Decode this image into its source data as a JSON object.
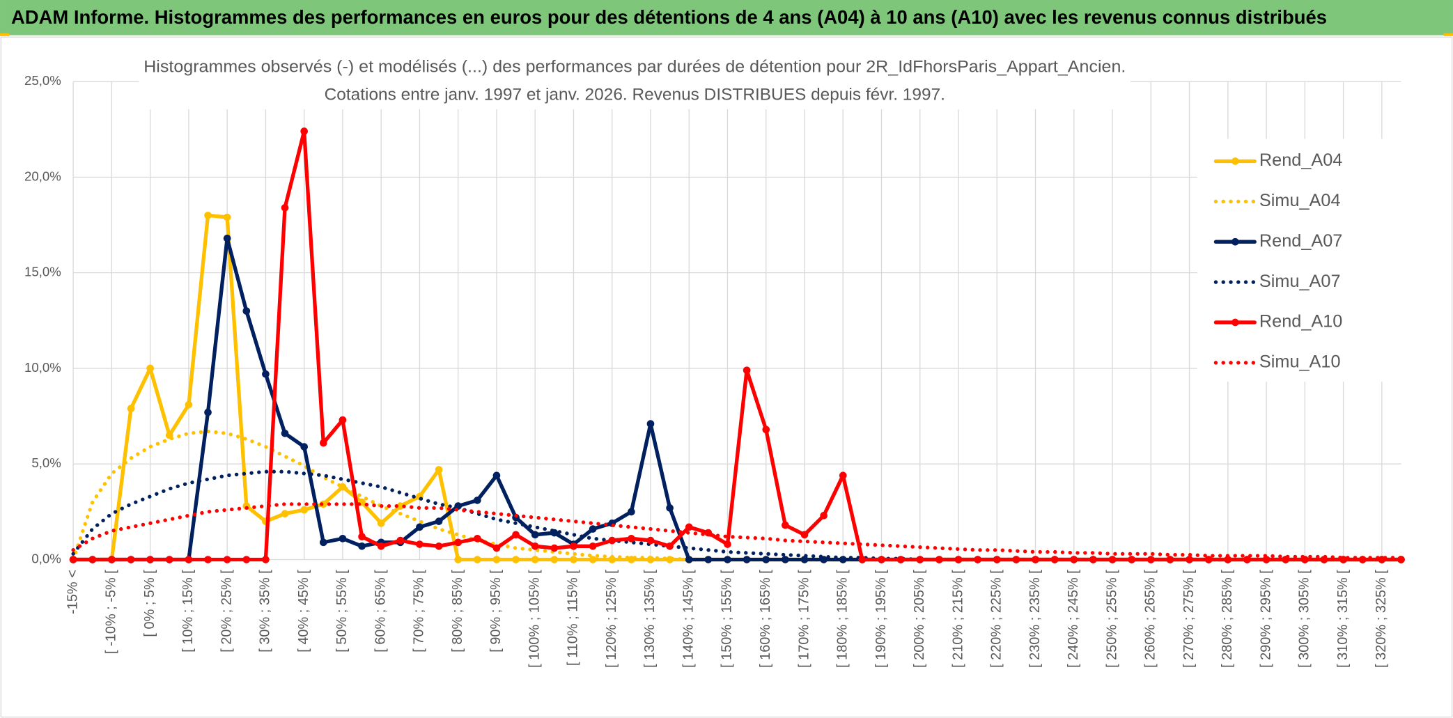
{
  "chart_data": {
    "type": "line",
    "header": "ADAM Informe. Histogrammes des performances en euros pour des détentions de 4 ans (A04) à 10 ans (A10) avec les revenus connus distribués",
    "title": "Histogrammes observés (-) et modélisés (...) des performances par durées de détention pour 2R_IdFhorsParis_Appart_Ancien.",
    "subtitle": "Cotations entre janv. 1997 et janv. 2026. Revenus DISTRIBUES depuis févr. 1997.",
    "categories": [
      "-15% <",
      null,
      "[ -10% ; -5% [",
      null,
      "[ 0% ; 5% [",
      null,
      "[ 10% ; 15% [",
      null,
      "[ 20% ; 25% [",
      null,
      "[ 30% ; 35% [",
      null,
      "[ 40% ; 45% [",
      null,
      "[ 50% ; 55% [",
      null,
      "[ 60% ; 65% [",
      null,
      "[ 70% ; 75% [",
      null,
      "[ 80% ; 85% [",
      null,
      "[ 90% ; 95% [",
      null,
      "[ 100% ; 105% [",
      null,
      "[ 110% ; 115% [",
      null,
      "[ 120% ; 125% [",
      null,
      "[ 130% ; 135% [",
      null,
      "[ 140% ; 145% [",
      null,
      "[ 150% ; 155% [",
      null,
      "[ 160% ; 165% [",
      null,
      "[ 170% ; 175% [",
      null,
      "[ 180% ; 185% [",
      null,
      "[ 190% ; 195% [",
      null,
      "[ 200% ; 205% [",
      null,
      "[ 210% ; 215% [",
      null,
      "[ 220% ; 225% [",
      null,
      "[ 230% ; 235% [",
      null,
      "[ 240% ; 245% [",
      null,
      "[ 250% ; 255% [",
      null,
      "[ 260% ; 265% [",
      null,
      "[ 270% ; 275% [",
      null,
      "[ 280% ; 285% [",
      null,
      "[ 290% ; 295% [",
      null,
      "[ 300% ; 305% [",
      null,
      "[ 310% ; 315% [",
      null,
      "[ 320% ; 325% [",
      null
    ],
    "ylim": [
      0,
      25
    ],
    "yticks": [
      {
        "value": 0,
        "label": "0,0%"
      },
      {
        "value": 5,
        "label": "5,0%"
      },
      {
        "value": 10,
        "label": "10,0%"
      },
      {
        "value": 15,
        "label": "15,0%"
      },
      {
        "value": 20,
        "label": "20,0%"
      },
      {
        "value": 25,
        "label": "25,0%"
      }
    ],
    "grid": true,
    "legend": "right",
    "series": [
      {
        "name": "Rend_A04",
        "color": "#ffc000",
        "style": "solid",
        "markers": true,
        "values": [
          0,
          0,
          0,
          7.9,
          10.0,
          6.5,
          8.1,
          18.0,
          17.9,
          2.8,
          2.0,
          2.4,
          2.6,
          2.9,
          3.8,
          3.0,
          1.9,
          2.8,
          3.3,
          4.7,
          0,
          0,
          0,
          0,
          0,
          0,
          0,
          0,
          0,
          0,
          0,
          0,
          0,
          0,
          0,
          0,
          0,
          0,
          0,
          0,
          0,
          0,
          0,
          0,
          0,
          0,
          0,
          0,
          0,
          0,
          0,
          0,
          0,
          0,
          0,
          0,
          0,
          0,
          0,
          0,
          0,
          0,
          0,
          0,
          0,
          0,
          0,
          0,
          0,
          0
        ]
      },
      {
        "name": "Simu_A04",
        "color": "#ffc000",
        "style": "dotted",
        "markers": false,
        "values": [
          0,
          3.0,
          4.5,
          5.3,
          5.9,
          6.3,
          6.6,
          6.7,
          6.6,
          6.3,
          5.9,
          5.4,
          4.9,
          4.3,
          3.8,
          3.3,
          2.8,
          2.4,
          2.0,
          1.6,
          1.3,
          1.0,
          0.8,
          0.6,
          0.5,
          0.4,
          0.3,
          0.2,
          0.15,
          0.1,
          0.1,
          0.05,
          0,
          0,
          0,
          0,
          0,
          0,
          0,
          0,
          0,
          0,
          0,
          0,
          0,
          0,
          0,
          0,
          0,
          0,
          0,
          0,
          0,
          0,
          0,
          0,
          0,
          0,
          0,
          0,
          0,
          0,
          0,
          0,
          0,
          0,
          0,
          0,
          0,
          0
        ]
      },
      {
        "name": "Rend_A07",
        "color": "#002060",
        "style": "solid",
        "markers": true,
        "values": [
          0,
          0,
          0,
          0,
          0,
          0,
          0,
          7.7,
          16.8,
          13.0,
          9.7,
          6.6,
          5.9,
          0.9,
          1.1,
          0.7,
          0.9,
          0.9,
          1.7,
          2.0,
          2.8,
          3.1,
          4.4,
          2.2,
          1.3,
          1.4,
          0.8,
          1.6,
          1.9,
          2.5,
          7.1,
          2.7,
          0,
          0,
          0,
          0,
          0,
          0,
          0,
          0,
          0,
          0,
          0,
          0,
          0,
          0,
          0,
          0,
          0,
          0,
          0,
          0,
          0,
          0,
          0,
          0,
          0,
          0,
          0,
          0,
          0,
          0,
          0,
          0,
          0,
          0,
          0,
          0,
          0,
          0
        ]
      },
      {
        "name": "Simu_A07",
        "color": "#002060",
        "style": "dotted",
        "markers": false,
        "values": [
          0.3,
          1.6,
          2.4,
          2.9,
          3.3,
          3.7,
          4.0,
          4.2,
          4.4,
          4.5,
          4.6,
          4.6,
          4.5,
          4.4,
          4.2,
          4.0,
          3.8,
          3.5,
          3.2,
          2.9,
          2.7,
          2.4,
          2.1,
          1.9,
          1.7,
          1.5,
          1.3,
          1.1,
          1.0,
          0.9,
          0.8,
          0.7,
          0.6,
          0.5,
          0.4,
          0.35,
          0.3,
          0.25,
          0.2,
          0.15,
          0.1,
          0.1,
          0.05,
          0.05,
          0,
          0,
          0,
          0,
          0,
          0,
          0,
          0,
          0,
          0,
          0,
          0,
          0,
          0,
          0,
          0,
          0,
          0,
          0,
          0,
          0,
          0,
          0,
          0,
          0,
          0
        ]
      },
      {
        "name": "Rend_A10",
        "color": "#ff0000",
        "style": "solid",
        "markers": true,
        "values": [
          0,
          0,
          0,
          0,
          0,
          0,
          0,
          0,
          0,
          0,
          0,
          18.4,
          22.4,
          6.1,
          7.3,
          1.2,
          0.7,
          1.0,
          0.8,
          0.7,
          0.9,
          1.1,
          0.6,
          1.3,
          0.7,
          0.6,
          0.7,
          0.7,
          1.0,
          1.1,
          1.0,
          0.7,
          1.7,
          1.4,
          0.8,
          9.9,
          6.8,
          1.8,
          1.3,
          2.3,
          4.4,
          0,
          0,
          0,
          0,
          0,
          0,
          0,
          0,
          0,
          0,
          0,
          0,
          0,
          0,
          0,
          0,
          0,
          0,
          0,
          0,
          0,
          0,
          0,
          0,
          0,
          0,
          0,
          0,
          0
        ]
      },
      {
        "name": "Simu_A10",
        "color": "#ff0000",
        "style": "dotted",
        "markers": false,
        "values": [
          0.5,
          1.1,
          1.5,
          1.7,
          1.9,
          2.1,
          2.3,
          2.5,
          2.6,
          2.7,
          2.8,
          2.9,
          2.9,
          2.9,
          2.9,
          2.9,
          2.8,
          2.8,
          2.7,
          2.7,
          2.6,
          2.5,
          2.4,
          2.3,
          2.2,
          2.1,
          2.0,
          1.9,
          1.8,
          1.7,
          1.6,
          1.5,
          1.4,
          1.3,
          1.2,
          1.15,
          1.1,
          1.0,
          0.95,
          0.9,
          0.85,
          0.8,
          0.75,
          0.7,
          0.65,
          0.6,
          0.55,
          0.5,
          0.5,
          0.45,
          0.4,
          0.4,
          0.35,
          0.35,
          0.3,
          0.3,
          0.3,
          0.25,
          0.25,
          0.2,
          0.2,
          0.2,
          0.2,
          0.15,
          0.15,
          0.15,
          0.1,
          0.1,
          0.1,
          0.1
        ]
      }
    ]
  }
}
